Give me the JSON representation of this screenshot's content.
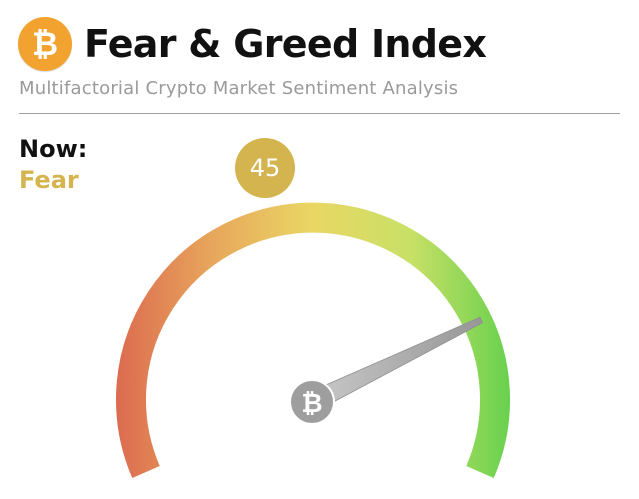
{
  "header": {
    "title": "Fear & Greed Index",
    "subtitle": "Multifactorial Crypto Market Sentiment Analysis",
    "logo_icon": "bitcoin-icon"
  },
  "now": {
    "label": "Now:",
    "classification": "Fear",
    "value": "45",
    "index_value": 45,
    "index_min": 0,
    "index_max": 100
  },
  "colors": {
    "badge": "#d4b44e",
    "logo": "#f2a32f",
    "gauge_start": "#dc6c50",
    "gauge_mid": "#e9d764",
    "gauge_end": "#6ad14f",
    "needle": "#a8a8a8"
  }
}
